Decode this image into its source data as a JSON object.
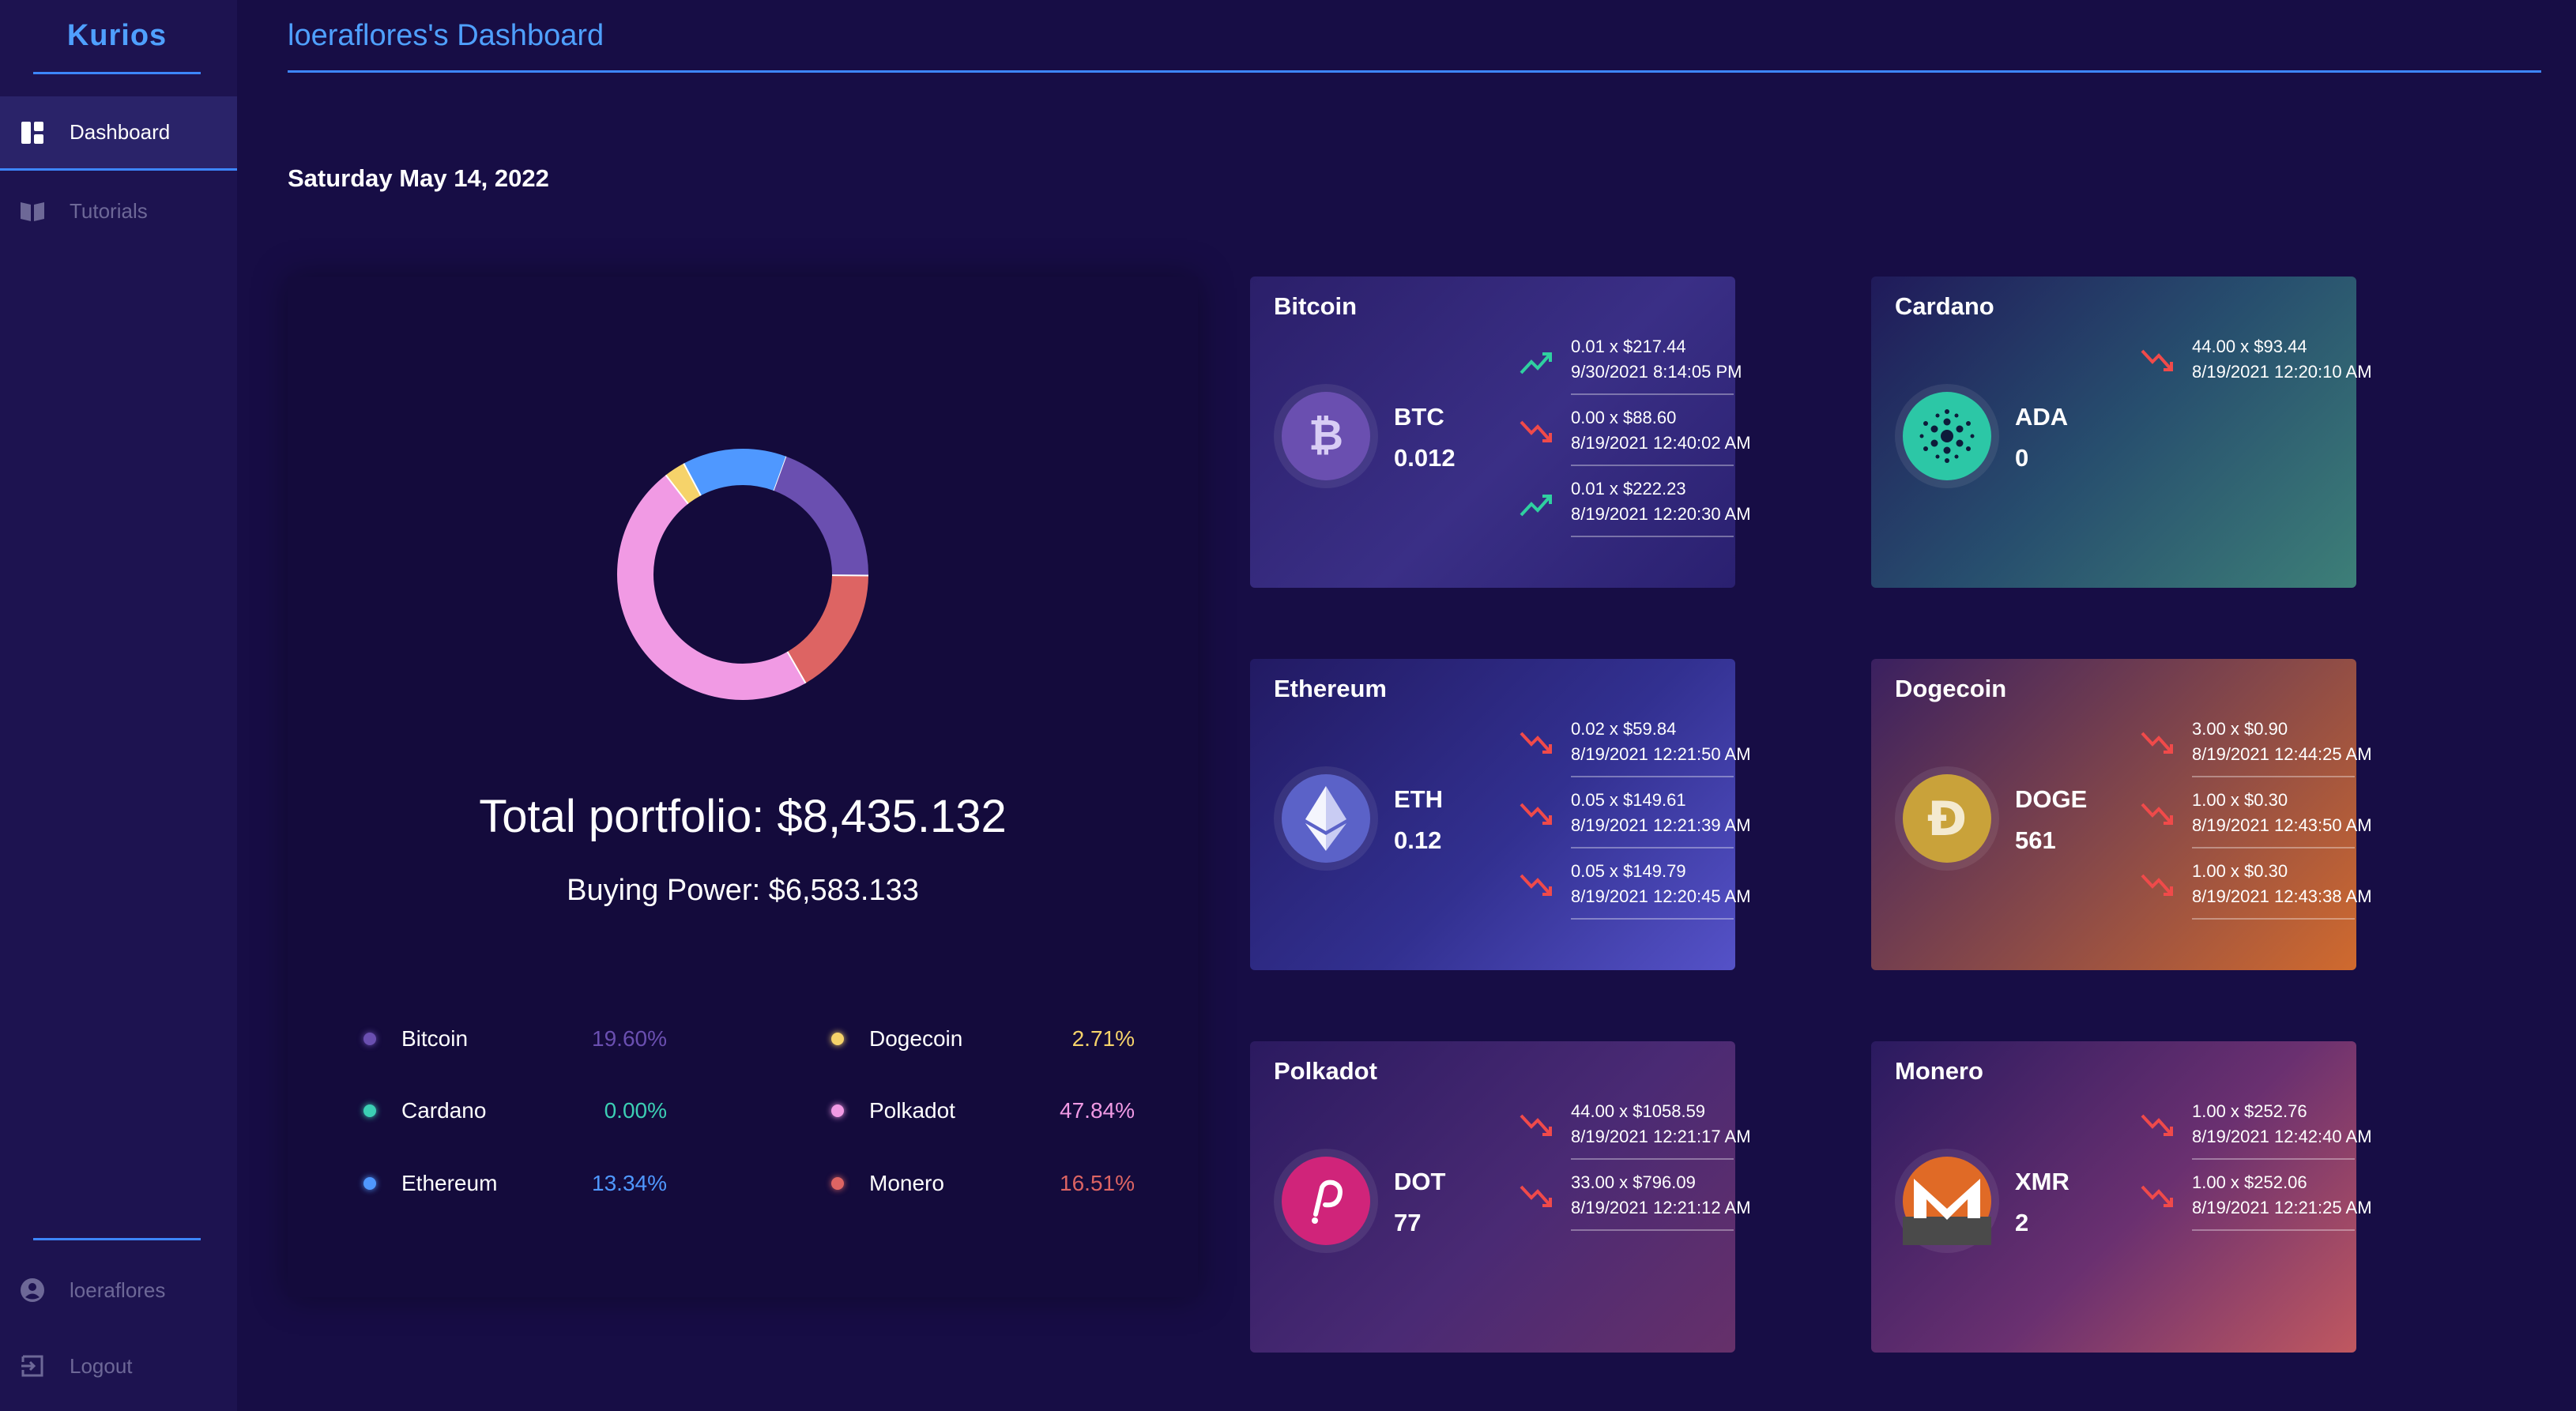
{
  "sidebar": {
    "brand": "Kurios",
    "items": [
      {
        "label": "Dashboard",
        "icon": "dashboard-icon",
        "active": true
      },
      {
        "label": "Tutorials",
        "icon": "book-icon",
        "active": false
      }
    ],
    "user": {
      "label": "loeraflores",
      "icon": "user-circle-icon"
    },
    "logout": {
      "label": "Logout",
      "icon": "logout-icon"
    }
  },
  "header": {
    "title": "loeraflores's Dashboard",
    "date": "Saturday May 14, 2022"
  },
  "portfolio": {
    "total": "Total portfolio: $8,435.132",
    "buying_power": "Buying Power: $6,583.133",
    "legend": [
      {
        "name": "Bitcoin",
        "pct": "19.60%",
        "color": "#6a4fb0"
      },
      {
        "name": "Cardano",
        "pct": "0.00%",
        "color": "#3ccfb4"
      },
      {
        "name": "Ethereum",
        "pct": "13.34%",
        "color": "#4f98ff"
      },
      {
        "name": "Dogecoin",
        "pct": "2.71%",
        "color": "#f6d36a"
      },
      {
        "name": "Polkadot",
        "pct": "47.84%",
        "color": "#f19ae4"
      },
      {
        "name": "Monero",
        "pct": "16.51%",
        "color": "#dd6463"
      }
    ]
  },
  "chart_data": {
    "type": "pie",
    "categories": [
      "Bitcoin",
      "Cardano",
      "Ethereum",
      "Dogecoin",
      "Polkadot",
      "Monero"
    ],
    "values": [
      19.6,
      0.0,
      13.34,
      2.71,
      47.84,
      16.51
    ],
    "colors": [
      "#6a4fb0",
      "#3ccfb4",
      "#4f98ff",
      "#f6d36a",
      "#f19ae4",
      "#dd6463"
    ],
    "style": "donut"
  },
  "coins": {
    "btc": {
      "name": "Bitcoin",
      "ticker": "BTC",
      "qty": "0.012",
      "transactions": [
        {
          "direction": "up",
          "line1": "0.01 x $217.44",
          "line2": "9/30/2021 8:14:05 PM"
        },
        {
          "direction": "down",
          "line1": "0.00 x $88.60",
          "line2": "8/19/2021 12:40:02 AM"
        },
        {
          "direction": "up",
          "line1": "0.01 x $222.23",
          "line2": "8/19/2021 12:20:30 AM"
        }
      ]
    },
    "ada": {
      "name": "Cardano",
      "ticker": "ADA",
      "qty": "0",
      "transactions": [
        {
          "direction": "down",
          "line1": "44.00 x $93.44",
          "line2": "8/19/2021 12:20:10 AM"
        }
      ]
    },
    "eth": {
      "name": "Ethereum",
      "ticker": "ETH",
      "qty": "0.12",
      "transactions": [
        {
          "direction": "down",
          "line1": "0.02 x $59.84",
          "line2": "8/19/2021 12:21:50 AM"
        },
        {
          "direction": "down",
          "line1": "0.05 x $149.61",
          "line2": "8/19/2021 12:21:39 AM"
        },
        {
          "direction": "down",
          "line1": "0.05 x $149.79",
          "line2": "8/19/2021 12:20:45 AM"
        }
      ]
    },
    "doge": {
      "name": "Dogecoin",
      "ticker": "DOGE",
      "qty": "561",
      "transactions": [
        {
          "direction": "down",
          "line1": "3.00 x $0.90",
          "line2": "8/19/2021 12:44:25 AM"
        },
        {
          "direction": "down",
          "line1": "1.00 x $0.30",
          "line2": "8/19/2021 12:43:50 AM"
        },
        {
          "direction": "down",
          "line1": "1.00 x $0.30",
          "line2": "8/19/2021 12:43:38 AM"
        }
      ]
    },
    "dot": {
      "name": "Polkadot",
      "ticker": "DOT",
      "qty": "77",
      "transactions": [
        {
          "direction": "down",
          "line1": "44.00 x $1058.59",
          "line2": "8/19/2021 12:21:17 AM"
        },
        {
          "direction": "down",
          "line1": "33.00 x $796.09",
          "line2": "8/19/2021 12:21:12 AM"
        }
      ]
    },
    "xmr": {
      "name": "Monero",
      "ticker": "XMR",
      "qty": "2",
      "transactions": [
        {
          "direction": "down",
          "line1": "1.00 x $252.76",
          "line2": "8/19/2021 12:42:40 AM"
        },
        {
          "direction": "down",
          "line1": "1.00 x $252.06",
          "line2": "8/19/2021 12:21:25 AM"
        }
      ]
    }
  },
  "colors": {
    "background": "#170d45",
    "sidebar": "#1d1350",
    "accent": "#3d86ff",
    "up": "#2fd0a0",
    "down": "#f04a4a"
  }
}
